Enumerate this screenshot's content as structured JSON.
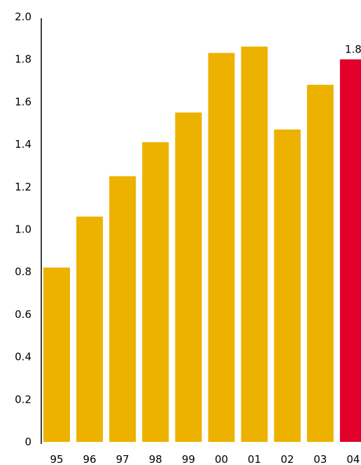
{
  "chart_data": {
    "type": "bar",
    "title": "",
    "xlabel": "",
    "ylabel": "",
    "categories": [
      "95",
      "96",
      "97",
      "98",
      "99",
      "00",
      "01",
      "02",
      "03",
      "04"
    ],
    "values": [
      0.82,
      1.06,
      1.25,
      1.41,
      1.55,
      1.83,
      1.86,
      1.47,
      1.68,
      1.8
    ],
    "ylim": [
      0,
      2.0
    ],
    "yticks": [
      0,
      0.2,
      0.4,
      0.6,
      0.8,
      1.0,
      1.2,
      1.4,
      1.6,
      1.8,
      2.0
    ],
    "ytick_labels": [
      "0",
      "0.2",
      "0.4",
      "0.6",
      "0.8",
      "1.0",
      "1.2",
      "1.4",
      "1.6",
      "1.8",
      "2.0"
    ],
    "data_labels": [
      {
        "category": "04",
        "text": "1.8"
      }
    ],
    "grid": false,
    "colors": {
      "bar": "#EDB100",
      "highlight": "#E2002B",
      "axis": "#000000",
      "text": "#000000"
    },
    "highlight_index": 9
  }
}
